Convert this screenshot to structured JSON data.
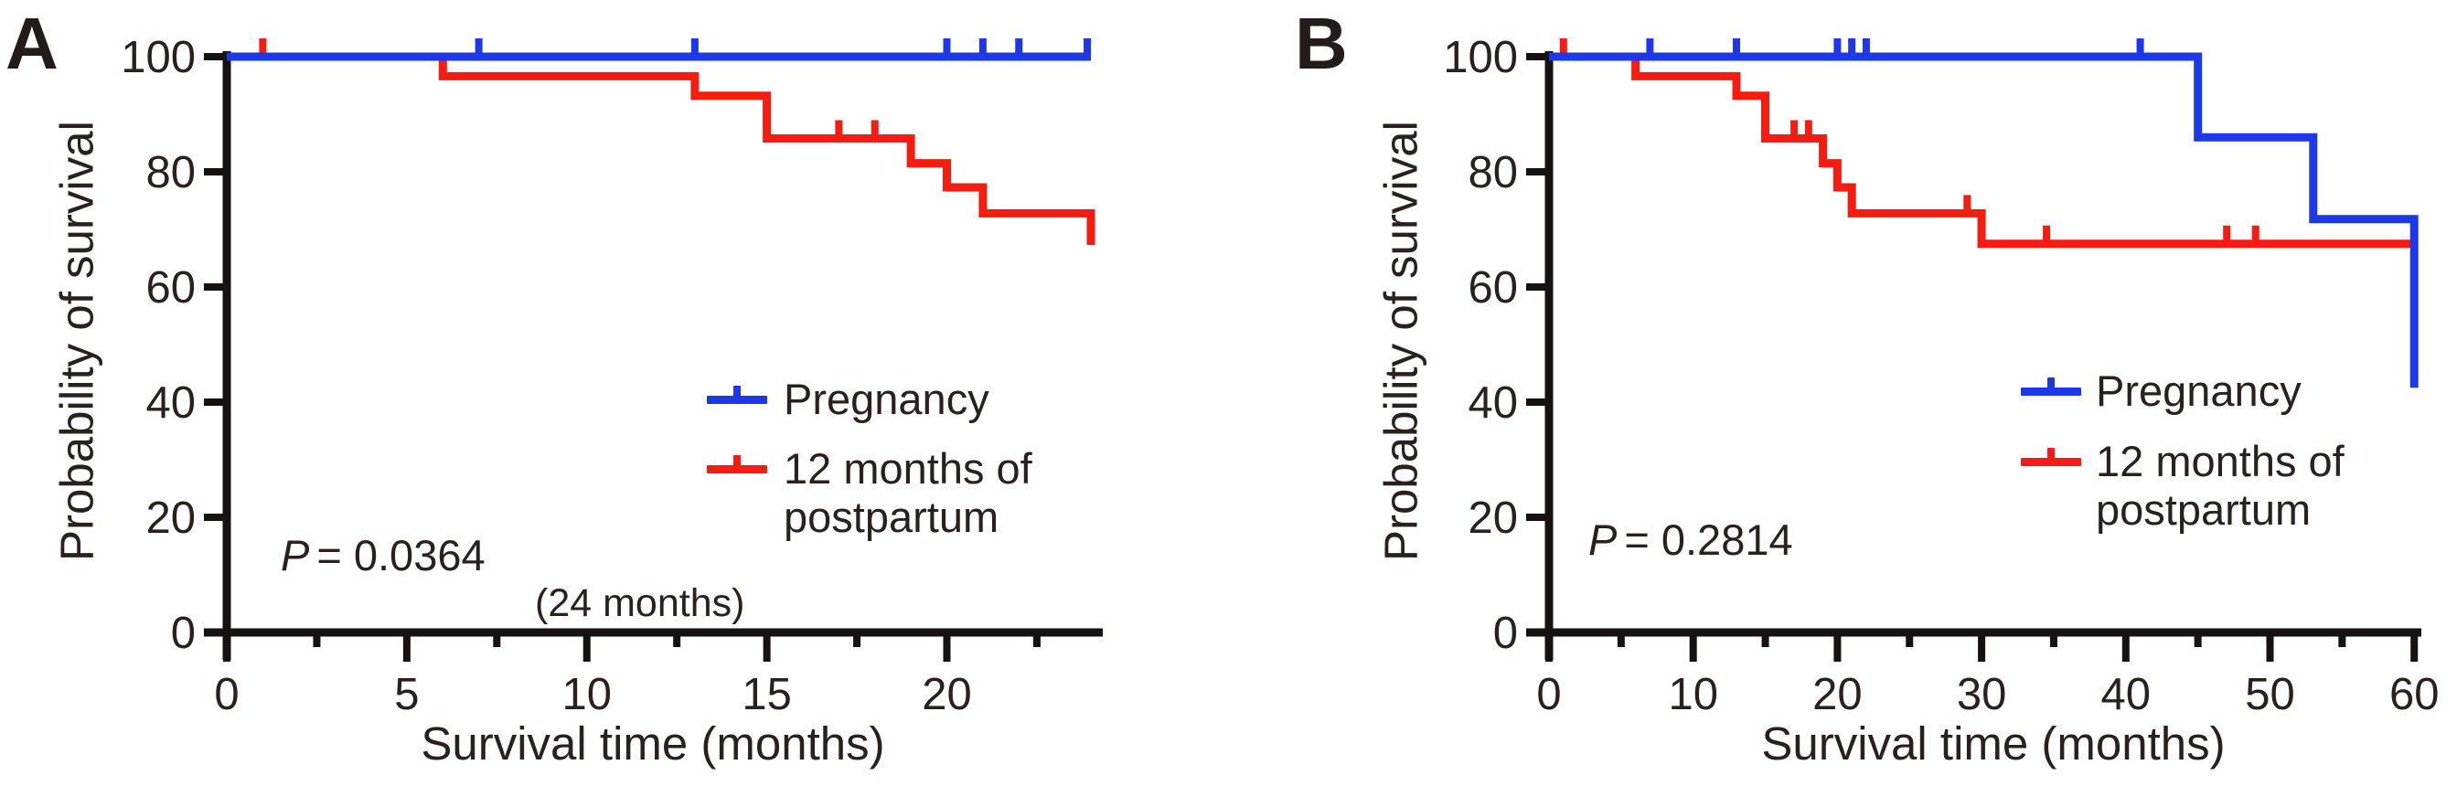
{
  "figure": {
    "colors": {
      "pregnancy_blue": "#1c38e8",
      "postpartum_red": "#f51d12",
      "axis_black": "#161211",
      "text_dark": "#2a211e"
    }
  },
  "chart_data": [
    {
      "type": "line",
      "subtype": "kaplan-meier-step",
      "panel": "A",
      "title": "",
      "xlabel": "Survival time (months)",
      "ylabel": "Probability of survival",
      "xlim": [
        0,
        24
      ],
      "ylim": [
        0,
        100
      ],
      "x_major_ticks": [
        0,
        5,
        10,
        15,
        20
      ],
      "x_minor_ticks": [
        2.5,
        7.5,
        12.5,
        17.5,
        22.5
      ],
      "y_major_ticks": [
        0,
        20,
        40,
        60,
        80,
        100
      ],
      "grid": false,
      "legend_position": "center-right",
      "p_value_text": "= 0.0364",
      "series": [
        {
          "name": "Pregnancy",
          "color": "#1c38e8",
          "steps": [
            [
              0,
              100
            ],
            [
              24,
              100
            ]
          ],
          "censor_marks": [
            [
              7,
              100
            ],
            [
              13,
              100
            ],
            [
              20,
              100
            ],
            [
              21,
              100
            ],
            [
              22,
              100
            ],
            [
              23.9,
              100
            ]
          ]
        },
        {
          "name": "12 months of postpartum",
          "color": "#f51d12",
          "steps": [
            [
              0,
              100
            ],
            [
              6,
              100
            ],
            [
              6,
              96.6
            ],
            [
              13,
              96.6
            ],
            [
              13,
              93.2
            ],
            [
              15,
              93.2
            ],
            [
              15,
              85.8
            ],
            [
              19,
              85.8
            ],
            [
              19,
              81.5
            ],
            [
              20,
              81.5
            ],
            [
              20,
              77.3
            ],
            [
              21,
              77.3
            ],
            [
              21,
              72.8
            ],
            [
              24,
              72.8
            ],
            [
              24,
              67.3
            ]
          ],
          "censor_marks": [
            [
              1,
              100
            ],
            [
              17,
              85.8
            ],
            [
              18,
              85.8
            ]
          ]
        }
      ]
    },
    {
      "type": "line",
      "subtype": "kaplan-meier-step",
      "panel": "B",
      "title": "",
      "xlabel": "Survival time (months)",
      "ylabel": "Probability of survival",
      "xlim": [
        0,
        60
      ],
      "ylim": [
        0,
        100
      ],
      "x_major_ticks": [
        0,
        10,
        20,
        30,
        40,
        50,
        60
      ],
      "x_minor_ticks": [
        5,
        15,
        25,
        35,
        45,
        55
      ],
      "y_major_ticks": [
        0,
        20,
        40,
        60,
        80,
        100
      ],
      "grid": false,
      "legend_position": "center-right",
      "p_value_text": "= 0.2814",
      "series": [
        {
          "name": "Pregnancy",
          "color": "#1c38e8",
          "steps": [
            [
              0,
              100
            ],
            [
              45,
              100
            ],
            [
              45,
              86
            ],
            [
              53,
              86
            ],
            [
              53,
              71.8
            ],
            [
              60,
              71.8
            ],
            [
              60,
              42.5
            ]
          ],
          "censor_marks": [
            [
              7,
              100
            ],
            [
              13,
              100
            ],
            [
              20,
              100
            ],
            [
              21,
              100
            ],
            [
              22,
              100
            ],
            [
              41,
              100
            ]
          ]
        },
        {
          "name": "12 months of postpartum",
          "color": "#f51d12",
          "steps": [
            [
              0,
              100
            ],
            [
              6,
              100
            ],
            [
              6,
              96.6
            ],
            [
              13,
              96.6
            ],
            [
              13,
              93.2
            ],
            [
              15,
              93.2
            ],
            [
              15,
              85.8
            ],
            [
              19,
              85.8
            ],
            [
              19,
              81.5
            ],
            [
              20,
              81.5
            ],
            [
              20,
              77.3
            ],
            [
              21,
              77.3
            ],
            [
              21,
              72.8
            ],
            [
              30,
              72.8
            ],
            [
              30,
              67.5
            ],
            [
              60,
              67.5
            ]
          ],
          "censor_marks": [
            [
              1,
              100
            ],
            [
              17,
              85.8
            ],
            [
              18,
              85.8
            ],
            [
              29,
              72.8
            ],
            [
              34.5,
              67.5
            ],
            [
              47,
              67.5
            ],
            [
              49,
              67.5
            ]
          ]
        }
      ]
    }
  ],
  "panels": [
    {
      "letter": "A",
      "y_axis_title": "Probability of survival",
      "x_axis_title": "Survival time (months)",
      "p_symbol": "P",
      "p_text": "= 0.0364",
      "extra_annotation": "(24 months)",
      "legend_entries": [
        {
          "line1": "Pregnancy",
          "line2": ""
        },
        {
          "line1": "12 months of",
          "line2": "postpartum"
        }
      ]
    },
    {
      "letter": "B",
      "y_axis_title": "Probability of survival",
      "x_axis_title": "Survival time (months)",
      "p_symbol": "P",
      "p_text": "= 0.2814",
      "extra_annotation": "",
      "legend_entries": [
        {
          "line1": "Pregnancy",
          "line2": ""
        },
        {
          "line1": "12 months of",
          "line2": "postpartum"
        }
      ]
    }
  ]
}
